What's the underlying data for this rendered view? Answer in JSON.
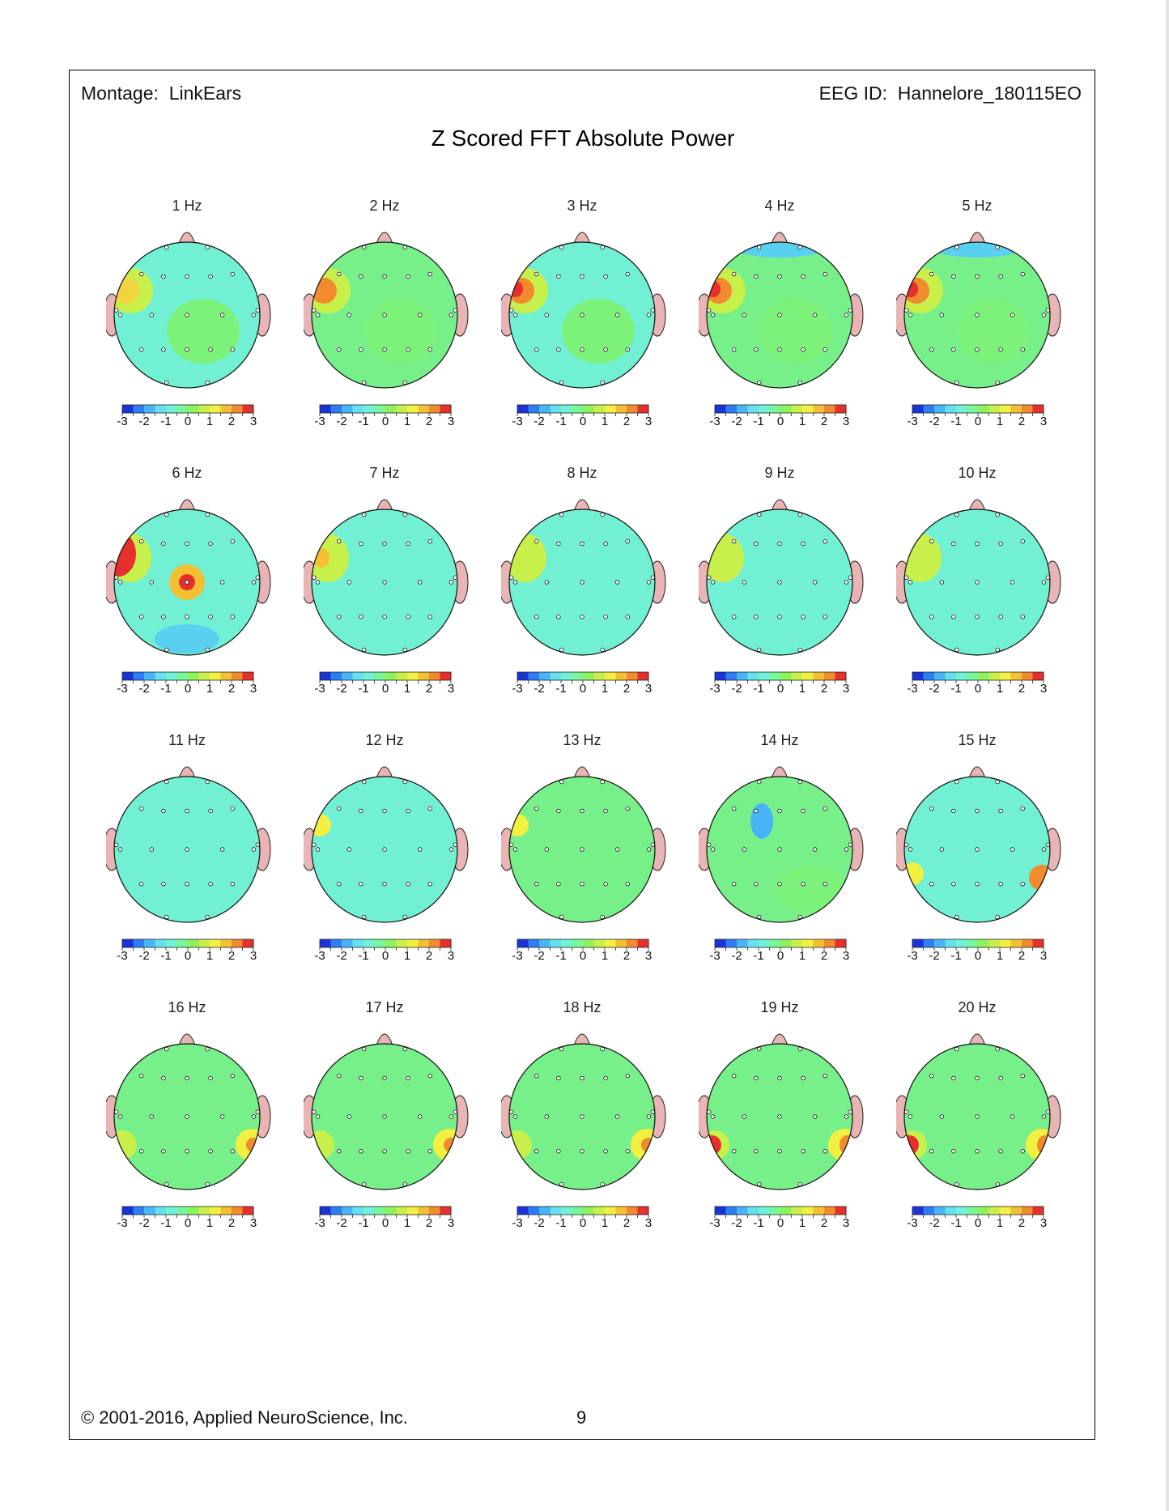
{
  "header": {
    "montage_label": "Montage:",
    "montage_value": "LinkEars",
    "eeg_id_label": "EEG ID:",
    "eeg_id_value": "Hannelore_180115EO"
  },
  "title": "Z Scored FFT Absolute Power",
  "colorbar": {
    "ticks": [
      "-3",
      "-2",
      "-1",
      "0",
      "1",
      "2",
      "3"
    ],
    "colors": [
      "#1a33d9",
      "#2d7df5",
      "#47b5f8",
      "#64e0f0",
      "#6ff2d6",
      "#77f79a",
      "#8ef25c",
      "#c8f04a",
      "#f2f040",
      "#f2c032",
      "#f28a2e",
      "#e6302c"
    ]
  },
  "maps": [
    {
      "label": "1 Hz"
    },
    {
      "label": "2 Hz"
    },
    {
      "label": "3 Hz"
    },
    {
      "label": "4 Hz"
    },
    {
      "label": "5 Hz"
    },
    {
      "label": "6 Hz"
    },
    {
      "label": "7 Hz"
    },
    {
      "label": "8 Hz"
    },
    {
      "label": "9 Hz"
    },
    {
      "label": "10 Hz"
    },
    {
      "label": "11 Hz"
    },
    {
      "label": "12 Hz"
    },
    {
      "label": "13 Hz"
    },
    {
      "label": "14 Hz"
    },
    {
      "label": "15 Hz"
    },
    {
      "label": "16 Hz"
    },
    {
      "label": "17 Hz"
    },
    {
      "label": "18 Hz"
    },
    {
      "label": "19 Hz"
    },
    {
      "label": "20 Hz"
    }
  ],
  "footer": {
    "copyright": "© 2001-2016, Applied NeuroScience, Inc.",
    "page_number": "9"
  }
}
